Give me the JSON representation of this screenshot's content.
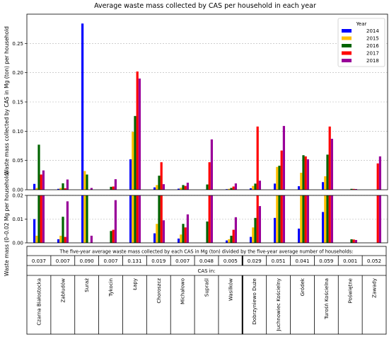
{
  "chart_data": {
    "type": "bar",
    "title": "Average waste mass collected by CAS per household in each year",
    "ylabel_top": "Waste mass collected by CAS in Mg (ton) per household",
    "ylabel_bottom": "Waste mass (0–0.02 Mg per household)",
    "ylim_top": [
      0,
      0.3
    ],
    "yticks_top": [
      "0.00",
      "0.05",
      "0.10",
      "0.15",
      "0.20",
      "0.25"
    ],
    "ytick_values_top": [
      0,
      0.05,
      0.1,
      0.15,
      0.2,
      0.25
    ],
    "ylim_bottom": [
      0,
      0.02
    ],
    "yticks_bottom": [
      "0.00",
      "0.01",
      "0.02"
    ],
    "ytick_values_bottom": [
      0,
      0.01,
      0.02
    ],
    "grid": "dashed horizontal",
    "legend": {
      "title": "Year",
      "placement": "top-right"
    },
    "categories": [
      "Czarna Białostocka",
      "Zabłudów",
      "Suraż",
      "Tykocin",
      "Łapy",
      "Choroszcz",
      "Michałowo",
      "Supraśl",
      "Wasilków",
      "Dobrzyniewo Duże",
      "Juchnowiec Kościelny",
      "Gródek",
      "Turośń Kościelna",
      "Poświętne",
      "Zawady"
    ],
    "series": [
      {
        "name": "2014",
        "color": "#0000ff",
        "values": [
          0.01,
          0.0015,
          0.284,
          0.0,
          0.052,
          0.004,
          0.0018,
          0.0,
          0.001,
          0.0025,
          0.0105,
          0.006,
          0.013,
          0.0,
          0.0
        ]
      },
      {
        "name": "2015",
        "color": "#ffbf00",
        "values": [
          0.003,
          0.003,
          0.032,
          0.0,
          0.099,
          0.008,
          0.0035,
          0.0,
          0.0015,
          0.0065,
          0.039,
          0.029,
          0.023,
          0.0,
          0.0
        ]
      },
      {
        "name": "2016",
        "color": "#006400",
        "values": [
          0.077,
          0.011,
          0.026,
          0.005,
          0.126,
          0.024,
          0.008,
          0.009,
          0.003,
          0.0105,
          0.041,
          0.059,
          0.06,
          0.0015,
          0.0
        ]
      },
      {
        "name": "2017",
        "color": "#ff0000",
        "values": [
          0.026,
          0.0025,
          0.0,
          0.0055,
          0.202,
          0.047,
          0.0065,
          0.047,
          0.0055,
          0.108,
          0.067,
          0.057,
          0.108,
          0.0014,
          0.045
        ]
      },
      {
        "name": "2018",
        "color": "#990099",
        "values": [
          0.033,
          0.0175,
          0.003,
          0.018,
          0.19,
          0.0095,
          0.012,
          0.086,
          0.0108,
          0.0155,
          0.109,
          0.052,
          0.087,
          0.0012,
          0.057
        ]
      }
    ],
    "table": {
      "header": "The five-year average waste mass collected by each CAS in Mg (ton) divided by the five-year average number of households:",
      "values": [
        "0.037",
        "0.007",
        "0.090",
        "0.007",
        "0.131",
        "0.019",
        "0.007",
        "0.048",
        "0.005",
        "0.029",
        "0.051",
        "0.041",
        "0.059",
        "0.001",
        "0.052"
      ],
      "row_label": "CAS in:"
    }
  }
}
